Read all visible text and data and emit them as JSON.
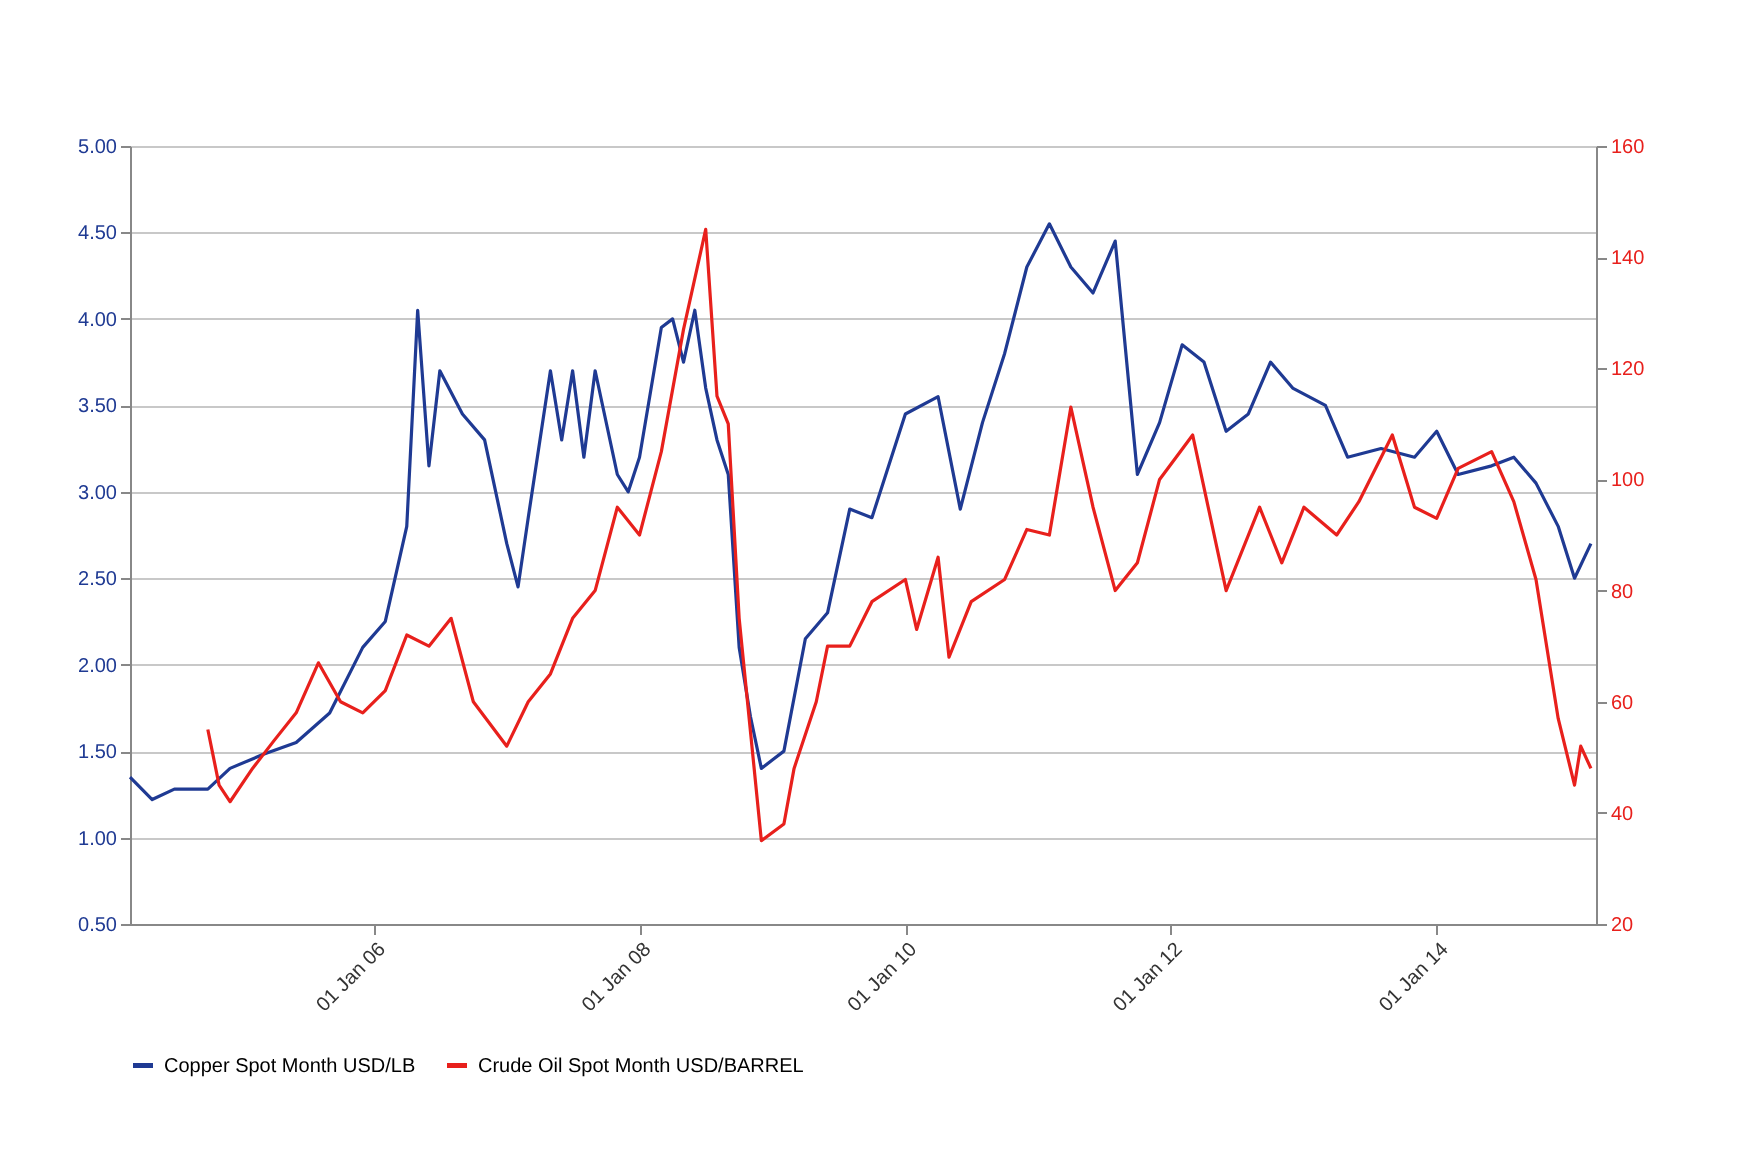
{
  "chart_data": {
    "type": "line",
    "xlim": [
      "2004-03-01",
      "2015-03-15"
    ],
    "xticks": [
      {
        "value": "2006-01-01",
        "label": "01 Jan 06"
      },
      {
        "value": "2008-01-01",
        "label": "01 Jan 08"
      },
      {
        "value": "2010-01-01",
        "label": "01 Jan 10"
      },
      {
        "value": "2012-01-01",
        "label": "01 Jan 12"
      },
      {
        "value": "2014-01-01",
        "label": "01 Jan 14"
      }
    ],
    "ylim": [
      0.5,
      5.0
    ],
    "yticks": [
      {
        "value": 0.5,
        "label": "0.50"
      },
      {
        "value": 1.0,
        "label": "1.00"
      },
      {
        "value": 1.5,
        "label": "1.50"
      },
      {
        "value": 2.0,
        "label": "2.00"
      },
      {
        "value": 2.5,
        "label": "2.50"
      },
      {
        "value": 3.0,
        "label": "3.00"
      },
      {
        "value": 3.5,
        "label": "3.50"
      },
      {
        "value": 4.0,
        "label": "4.00"
      },
      {
        "value": 4.5,
        "label": "4.50"
      },
      {
        "value": 5.0,
        "label": "5.00"
      }
    ],
    "y2lim": [
      20,
      160
    ],
    "y2ticks": [
      20,
      40,
      60,
      80,
      100,
      120,
      140,
      160
    ],
    "grid": "y",
    "legend": "bottom",
    "series": [
      {
        "name": "Copper Spot Month USD/LB",
        "color": "#1f3a93",
        "x": [
          "2004-03-01",
          "2004-05-01",
          "2004-07-01",
          "2004-10-01",
          "2004-12-01",
          "2005-03-01",
          "2005-06-01",
          "2005-09-01",
          "2005-12-01",
          "2006-02-01",
          "2006-04-01",
          "2006-05-01",
          "2006-06-01",
          "2006-07-01",
          "2006-09-01",
          "2006-11-01",
          "2007-01-01",
          "2007-02-01",
          "2007-03-01",
          "2007-05-01",
          "2007-06-01",
          "2007-07-01",
          "2007-08-01",
          "2007-09-01",
          "2007-11-01",
          "2007-12-01",
          "2008-01-01",
          "2008-03-01",
          "2008-04-01",
          "2008-05-01",
          "2008-06-01",
          "2008-07-01",
          "2008-08-01",
          "2008-09-01",
          "2008-10-01",
          "2008-11-01",
          "2008-12-01",
          "2009-01-01",
          "2009-02-01",
          "2009-04-01",
          "2009-06-01",
          "2009-08-01",
          "2009-10-01",
          "2010-01-01",
          "2010-04-01",
          "2010-06-01",
          "2010-08-01",
          "2010-10-01",
          "2010-12-01",
          "2011-02-01",
          "2011-04-01",
          "2011-06-01",
          "2011-08-01",
          "2011-10-01",
          "2011-12-01",
          "2012-02-01",
          "2012-04-01",
          "2012-06-01",
          "2012-08-01",
          "2012-10-01",
          "2012-12-01",
          "2013-03-01",
          "2013-05-01",
          "2013-08-01",
          "2013-11-01",
          "2014-01-01",
          "2014-03-01",
          "2014-06-01",
          "2014-08-01",
          "2014-10-01",
          "2014-12-01",
          "2015-01-15",
          "2015-03-01"
        ],
        "values": [
          1.35,
          1.22,
          1.28,
          1.28,
          1.4,
          1.48,
          1.55,
          1.72,
          2.1,
          2.25,
          2.8,
          4.05,
          3.15,
          3.7,
          3.45,
          3.3,
          2.7,
          2.45,
          2.85,
          3.7,
          3.3,
          3.7,
          3.2,
          3.7,
          3.1,
          3.0,
          3.2,
          3.95,
          4.0,
          3.75,
          4.05,
          3.6,
          3.3,
          3.1,
          2.1,
          1.7,
          1.4,
          1.45,
          1.5,
          2.15,
          2.3,
          2.9,
          2.85,
          3.45,
          3.55,
          2.9,
          3.4,
          3.8,
          4.3,
          4.55,
          4.3,
          4.15,
          4.45,
          3.1,
          3.4,
          3.85,
          3.75,
          3.35,
          3.45,
          3.75,
          3.6,
          3.5,
          3.2,
          3.25,
          3.2,
          3.35,
          3.1,
          3.15,
          3.2,
          3.05,
          2.8,
          2.5,
          2.7
        ]
      },
      {
        "name": "Crude Oil Spot Month USD/BARREL",
        "color": "#e8201c",
        "axis": "y2",
        "x": [
          "2004-10-01",
          "2004-11-01",
          "2004-12-01",
          "2005-02-01",
          "2005-04-01",
          "2005-06-01",
          "2005-08-01",
          "2005-10-01",
          "2005-12-01",
          "2006-02-01",
          "2006-04-01",
          "2006-06-01",
          "2006-08-01",
          "2006-10-01",
          "2007-01-01",
          "2007-03-01",
          "2007-05-01",
          "2007-07-01",
          "2007-09-01",
          "2007-11-01",
          "2008-01-01",
          "2008-03-01",
          "2008-05-01",
          "2008-07-01",
          "2008-08-01",
          "2008-09-01",
          "2008-10-01",
          "2008-12-01",
          "2009-02-01",
          "2009-03-01",
          "2009-05-01",
          "2009-06-01",
          "2009-08-01",
          "2009-10-01",
          "2010-01-01",
          "2010-02-01",
          "2010-04-01",
          "2010-05-01",
          "2010-07-01",
          "2010-10-01",
          "2010-12-01",
          "2011-02-01",
          "2011-04-01",
          "2011-06-01",
          "2011-08-01",
          "2011-10-01",
          "2011-12-01",
          "2012-03-01",
          "2012-06-01",
          "2012-09-01",
          "2012-11-01",
          "2013-01-01",
          "2013-04-01",
          "2013-06-01",
          "2013-09-01",
          "2013-11-01",
          "2014-01-01",
          "2014-03-01",
          "2014-06-01",
          "2014-08-01",
          "2014-10-01",
          "2014-12-01",
          "2015-01-15",
          "2015-02-01",
          "2015-03-01"
        ],
        "values": [
          55,
          45,
          42,
          48,
          53,
          58,
          67,
          60,
          58,
          62,
          72,
          70,
          75,
          60,
          52,
          60,
          65,
          75,
          80,
          95,
          90,
          105,
          127,
          145,
          115,
          110,
          75,
          35,
          38,
          48,
          60,
          70,
          70,
          78,
          82,
          73,
          86,
          68,
          78,
          82,
          91,
          90,
          113,
          95,
          80,
          85,
          100,
          108,
          80,
          95,
          85,
          95,
          90,
          96,
          108,
          95,
          93,
          102,
          105,
          96,
          82,
          57,
          45,
          52,
          48
        ]
      }
    ]
  }
}
